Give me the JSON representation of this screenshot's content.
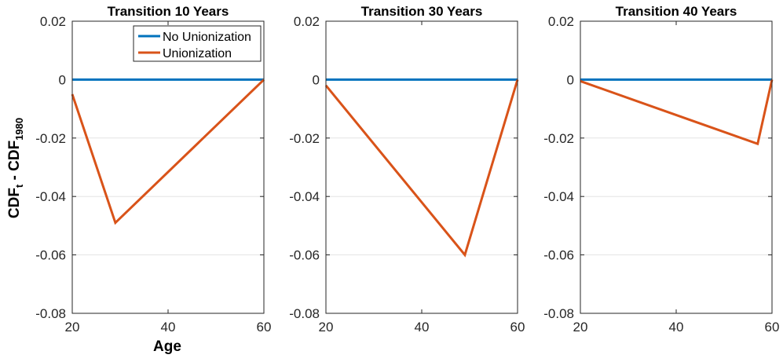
{
  "figure": {
    "ylabel_main": "CDF",
    "ylabel_sub1": "t",
    "ylabel_mid": " - CDF",
    "ylabel_sub2": "1980",
    "xlabel": "Age"
  },
  "legend": {
    "placement": "top-right of first panel",
    "entries": [
      {
        "label": "No Unionization",
        "color": "#0072BD"
      },
      {
        "label": "Unionization",
        "color": "#D95319"
      }
    ]
  },
  "chart_data": [
    {
      "type": "line",
      "title": "Transition 10 Years",
      "xlabel": "Age",
      "ylabel": "CDF_t - CDF_1980",
      "xlim": [
        20,
        60
      ],
      "ylim": [
        -0.08,
        0.02
      ],
      "xticks": [
        "20",
        "40",
        "60"
      ],
      "yticks": [
        "0.02",
        "0",
        "-0.02",
        "-0.04",
        "-0.06",
        "-0.08"
      ],
      "grid": "horizontal",
      "series": [
        {
          "name": "No Unionization",
          "color": "#0072BD",
          "x": [
            20,
            60
          ],
          "y": [
            0,
            0
          ]
        },
        {
          "name": "Unionization",
          "color": "#D95319",
          "x": [
            20,
            29,
            60
          ],
          "y": [
            -0.005,
            -0.049,
            0
          ]
        }
      ]
    },
    {
      "type": "line",
      "title": "Transition 30 Years",
      "xlim": [
        20,
        60
      ],
      "ylim": [
        -0.08,
        0.02
      ],
      "xticks": [
        "20",
        "40",
        "60"
      ],
      "yticks": [
        "0.02",
        "0",
        "-0.02",
        "-0.04",
        "-0.06",
        "-0.08"
      ],
      "grid": "horizontal",
      "series": [
        {
          "name": "No Unionization",
          "color": "#0072BD",
          "x": [
            20,
            60
          ],
          "y": [
            0,
            0
          ]
        },
        {
          "name": "Unionization",
          "color": "#D95319",
          "x": [
            20,
            49,
            60
          ],
          "y": [
            -0.002,
            -0.06,
            0
          ]
        }
      ]
    },
    {
      "type": "line",
      "title": "Transition 40 Years",
      "xlim": [
        20,
        60
      ],
      "ylim": [
        -0.08,
        0.02
      ],
      "xticks": [
        "20",
        "40",
        "60"
      ],
      "yticks": [
        "0.02",
        "0",
        "-0.02",
        "-0.04",
        "-0.06",
        "-0.08"
      ],
      "grid": "horizontal",
      "series": [
        {
          "name": "No Unionization",
          "color": "#0072BD",
          "x": [
            20,
            60
          ],
          "y": [
            0,
            0
          ]
        },
        {
          "name": "Unionization",
          "color": "#D95319",
          "x": [
            20,
            57,
            60
          ],
          "y": [
            -0.0005,
            -0.022,
            0
          ]
        }
      ]
    }
  ]
}
